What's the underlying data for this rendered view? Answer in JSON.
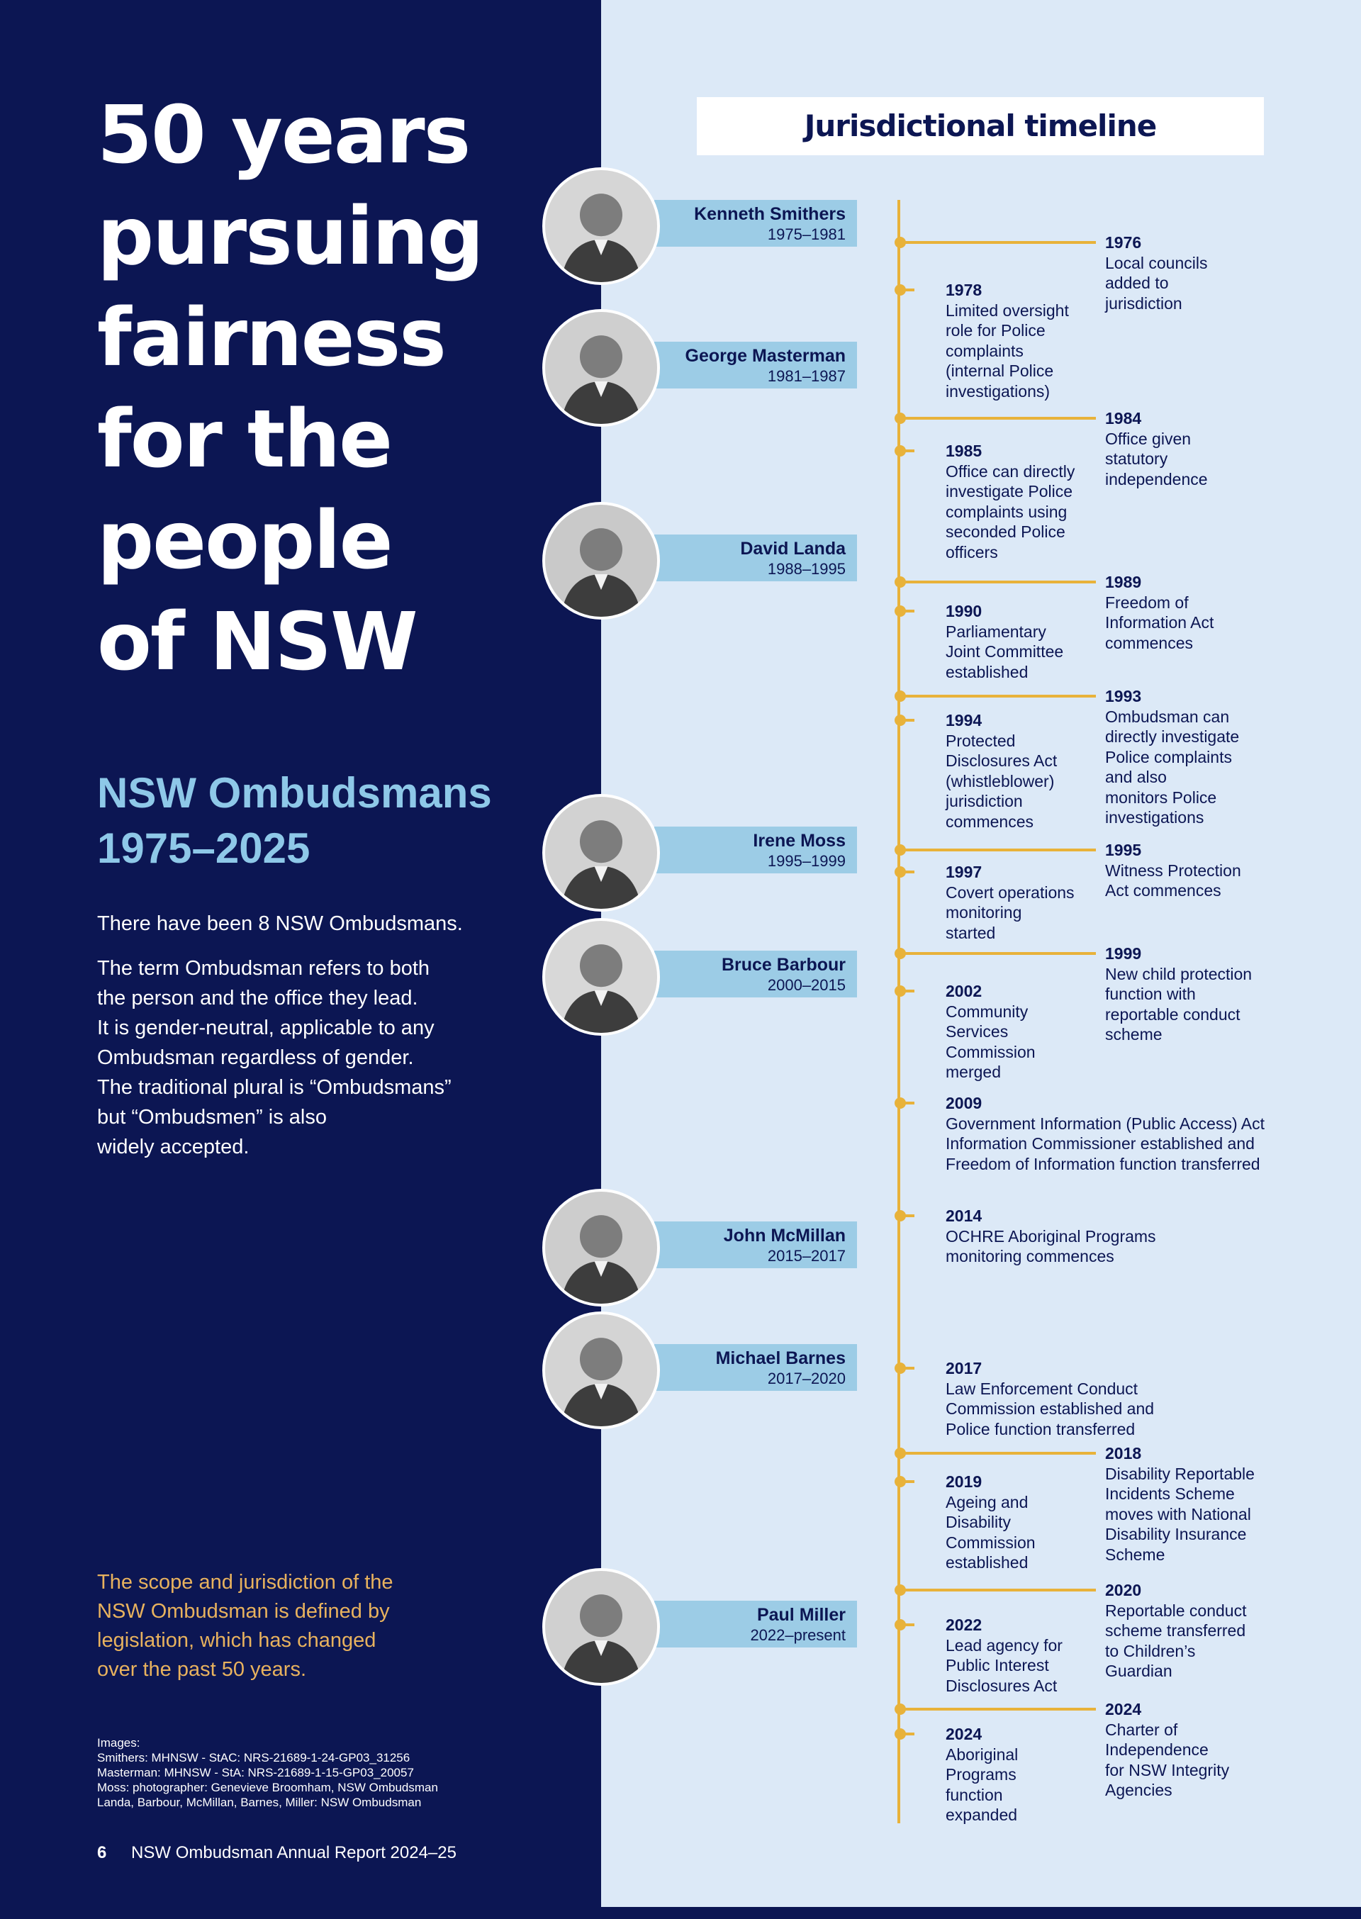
{
  "title_lines": [
    "50 years",
    "pursuing",
    "fairness",
    "for the",
    "people",
    "of NSW"
  ],
  "subtitle_lines": [
    "NSW Ombudsmans",
    "1975–2025"
  ],
  "intro": "There have been 8 NSW Ombudsmans.",
  "term_lines": [
    "The term Ombudsman refers to both",
    "the person and the office they lead.",
    "It is gender-neutral, applicable to any",
    "Ombudsman regardless of gender.",
    "The traditional plural is “Ombudsmans”",
    "but “Ombudsmen” is also",
    "widely accepted."
  ],
  "scope_lines": [
    "The scope and jurisdiction of the",
    "NSW Ombudsman is defined by",
    "legislation, which has changed",
    "over the past 50 years."
  ],
  "credits_lines": [
    "Images:",
    "Smithers: MHNSW - StAC: NRS-21689-1-24-GP03_31256",
    "Masterman: MHNSW - StA: NRS-21689-1-15-GP03_20057",
    "Moss: photographer: Genevieve Broomham, NSW Ombudsman",
    "Landa, Barbour, McMillan, Barnes, Miller: NSW Ombudsman"
  ],
  "footer": {
    "page": "6",
    "text": "NSW Ombudsman Annual Report 2024–25"
  },
  "timeline_heading": "Jurisdictional timeline",
  "ombudsmans": [
    {
      "name": "Kenneth Smithers",
      "years": "1975–1981"
    },
    {
      "name": "George Masterman",
      "years": "1981–1987"
    },
    {
      "name": "David Landa",
      "years": "1988–1995"
    },
    {
      "name": "Irene Moss",
      "years": "1995–1999"
    },
    {
      "name": "Bruce Barbour",
      "years": "2000–2015"
    },
    {
      "name": "John McMillan",
      "years": "2015–2017"
    },
    {
      "name": "Michael Barnes",
      "years": "2017–2020"
    },
    {
      "name": "Paul Miller",
      "years": "2022–present"
    }
  ],
  "events": [
    {
      "year": "1976",
      "side": "right",
      "lines": [
        "Local councils",
        "added to",
        "jurisdiction"
      ]
    },
    {
      "year": "1978",
      "side": "left",
      "lines": [
        "Limited oversight",
        "role for Police",
        "complaints",
        "(internal Police",
        "investigations)"
      ]
    },
    {
      "year": "1984",
      "side": "right",
      "lines": [
        "Office given",
        "statutory",
        "independence"
      ]
    },
    {
      "year": "1985",
      "side": "left",
      "lines": [
        "Office can directly",
        "investigate Police",
        "complaints using",
        "seconded Police",
        "officers"
      ]
    },
    {
      "year": "1989",
      "side": "right",
      "lines": [
        "Freedom of",
        "Information Act",
        "commences"
      ]
    },
    {
      "year": "1990",
      "side": "left",
      "lines": [
        "Parliamentary",
        "Joint Committee",
        "established"
      ]
    },
    {
      "year": "1993",
      "side": "right",
      "lines": [
        "Ombudsman can",
        "directly investigate",
        "Police complaints",
        "and also",
        "monitors Police",
        "investigations"
      ]
    },
    {
      "year": "1994",
      "side": "left",
      "lines": [
        "Protected",
        "Disclosures Act",
        "(whistleblower)",
        "jurisdiction",
        "commences"
      ]
    },
    {
      "year": "1995",
      "side": "right",
      "lines": [
        "Witness Protection",
        "Act commences"
      ]
    },
    {
      "year": "1997",
      "side": "left",
      "lines": [
        "Covert operations",
        "monitoring",
        "started"
      ]
    },
    {
      "year": "1999",
      "side": "right",
      "lines": [
        "New child protection",
        "function with",
        "reportable conduct",
        "scheme"
      ]
    },
    {
      "year": "2002",
      "side": "left",
      "lines": [
        "Community",
        "Services",
        "Commission",
        "merged"
      ]
    },
    {
      "year": "2009",
      "side": "left",
      "lines": [
        "Government Information (Public Access) Act",
        "Information Commissioner established and",
        "Freedom of Information function transferred"
      ]
    },
    {
      "year": "2014",
      "side": "left",
      "lines": [
        "OCHRE Aboriginal Programs",
        "monitoring commences"
      ]
    },
    {
      "year": "2017",
      "side": "left",
      "lines": [
        "Law Enforcement Conduct",
        "Commission established and",
        "Police function transferred"
      ]
    },
    {
      "year": "2018",
      "side": "right",
      "lines": [
        "Disability Reportable",
        "Incidents Scheme",
        "moves with National",
        "Disability Insurance",
        "Scheme"
      ]
    },
    {
      "year": "2019",
      "side": "left",
      "lines": [
        "Ageing and",
        "Disability",
        "Commission",
        "established"
      ]
    },
    {
      "year": "2020",
      "side": "right",
      "lines": [
        "Reportable conduct",
        "scheme transferred",
        "to Children’s",
        "Guardian"
      ]
    },
    {
      "year": "2022",
      "side": "left",
      "lines": [
        "Lead agency for",
        "Public Interest",
        "Disclosures Act"
      ]
    },
    {
      "year": "2024",
      "side": "right",
      "lines": [
        "Charter of",
        "Independence",
        "for NSW Integrity",
        "Agencies"
      ]
    },
    {
      "year": "2024",
      "side": "left",
      "lines": [
        "Aboriginal",
        "Programs",
        "function",
        "expanded"
      ]
    }
  ]
}
